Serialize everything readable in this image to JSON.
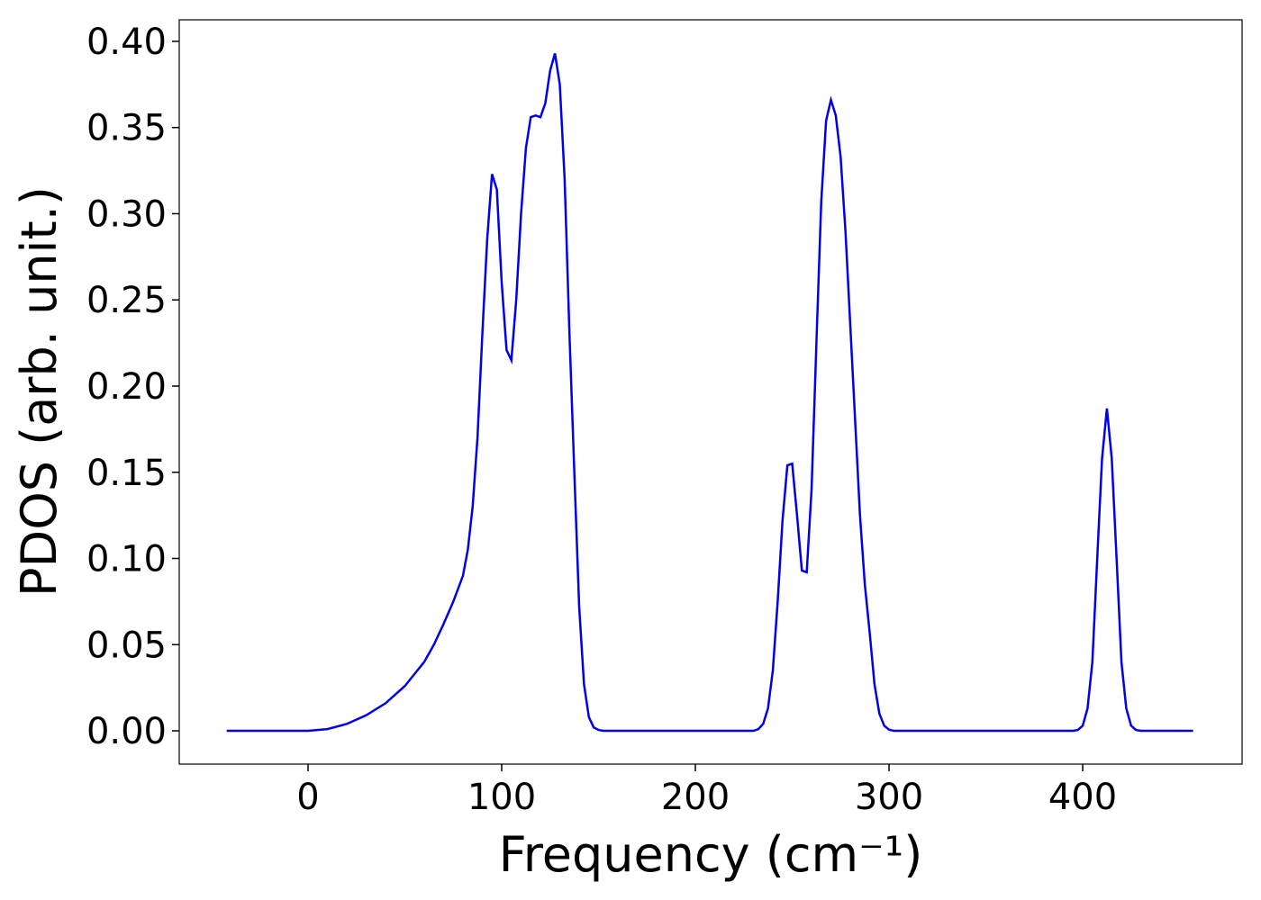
{
  "chart_data": {
    "type": "line",
    "xlabel": "Frequency (cm⁻¹)",
    "ylabel": "PDOS (arb. unit.)",
    "x": [
      -42,
      0,
      10,
      20,
      30,
      40,
      50,
      60,
      65,
      70,
      75,
      80,
      82.5,
      85,
      87.5,
      90,
      92.5,
      95,
      97.5,
      100,
      102.5,
      105,
      107.5,
      110,
      112.5,
      115,
      117.5,
      120,
      122.5,
      125,
      127.5,
      130,
      132.5,
      135,
      137.5,
      140,
      142.5,
      145,
      147.5,
      150,
      152.5,
      230,
      232.5,
      235,
      237.5,
      240,
      242.5,
      245,
      247.5,
      250,
      252.5,
      255,
      257.5,
      260,
      262.5,
      265,
      267.5,
      270,
      272.5,
      275,
      277.5,
      280,
      282.5,
      285,
      287.5,
      290,
      292.5,
      295,
      297.5,
      300,
      302.5,
      395,
      397.5,
      400,
      402.5,
      405,
      407.5,
      410,
      412.5,
      415,
      417.5,
      420,
      422.5,
      425,
      427.5,
      430,
      457
    ],
    "series": [
      {
        "name": "PDOS",
        "color": "#0000ee",
        "values": [
          0,
          0,
          0.001,
          0.004,
          0.009,
          0.016,
          0.026,
          0.04,
          0.05,
          0.062,
          0.075,
          0.09,
          0.105,
          0.13,
          0.17,
          0.23,
          0.285,
          0.323,
          0.314,
          0.26,
          0.221,
          0.215,
          0.25,
          0.3,
          0.338,
          0.356,
          0.357,
          0.356,
          0.364,
          0.383,
          0.393,
          0.375,
          0.32,
          0.23,
          0.15,
          0.072,
          0.027,
          0.008,
          0.002,
          0.0005,
          0,
          0,
          0.001,
          0.004,
          0.013,
          0.035,
          0.075,
          0.122,
          0.154,
          0.155,
          0.125,
          0.093,
          0.092,
          0.14,
          0.225,
          0.307,
          0.354,
          0.366,
          0.357,
          0.333,
          0.29,
          0.235,
          0.18,
          0.125,
          0.085,
          0.057,
          0.027,
          0.01,
          0.003,
          0.0007,
          0,
          0,
          0.0005,
          0.003,
          0.013,
          0.04,
          0.1,
          0.158,
          0.187,
          0.158,
          0.1,
          0.04,
          0.013,
          0.003,
          0.0005,
          0,
          0
        ]
      }
    ],
    "xlim": [
      -66.5,
      482.3
    ],
    "ylim": [
      -0.0193,
      0.4125
    ],
    "xticks": [
      0,
      100,
      200,
      300,
      400
    ],
    "yticks": [
      {
        "value": 0,
        "label": "0.00"
      },
      {
        "value": 0.05,
        "label": "0.05"
      },
      {
        "value": 0.1,
        "label": "0.10"
      },
      {
        "value": 0.15,
        "label": "0.15"
      },
      {
        "value": 0.2,
        "label": "0.20"
      },
      {
        "value": 0.25,
        "label": "0.25"
      },
      {
        "value": 0.3,
        "label": "0.30"
      },
      {
        "value": 0.35,
        "label": "0.35"
      },
      {
        "value": 0.4,
        "label": "0.40"
      }
    ],
    "grid": false
  }
}
